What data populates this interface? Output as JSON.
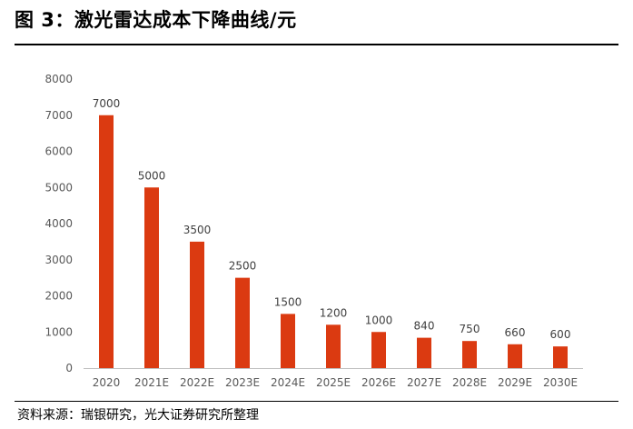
{
  "title": "图 3：激光雷达成本下降曲线/元",
  "source": "资料来源：瑞银研究，光大证券研究所整理",
  "colors": {
    "bar": "#db3a11",
    "axis": "#bfbfbf",
    "tick_text": "#595959",
    "label_text": "#404040"
  },
  "chart_data": {
    "type": "bar",
    "title": "图 3：激光雷达成本下降曲线/元",
    "xlabel": "",
    "ylabel": "",
    "categories": [
      "2020",
      "2021E",
      "2022E",
      "2023E",
      "2024E",
      "2025E",
      "2026E",
      "2027E",
      "2028E",
      "2029E",
      "2030E"
    ],
    "values": [
      7000,
      5000,
      3500,
      2500,
      1500,
      1200,
      1000,
      840,
      750,
      660,
      600
    ],
    "data_labels": [
      "7000",
      "5000",
      "3500",
      "2500",
      "1500",
      "1200",
      "1000",
      "840",
      "750",
      "660",
      "600"
    ],
    "ylim": [
      0,
      8000
    ],
    "yticks": [
      "0",
      "1000",
      "2000",
      "3000",
      "4000",
      "5000",
      "6000",
      "7000",
      "8000"
    ],
    "grid": false,
    "legend": "none"
  }
}
